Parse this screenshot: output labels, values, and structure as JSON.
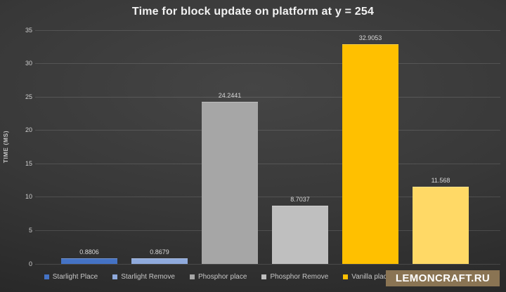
{
  "watermark": {
    "text": "LEMONCRAFT.RU",
    "background": "#8a7453"
  },
  "chart_data": {
    "type": "bar",
    "title": "Time for block update on platform at y = 254",
    "xlabel": "",
    "ylabel": "TIME (MS)",
    "ylim": [
      0,
      35
    ],
    "yticks": [
      0,
      5,
      10,
      15,
      20,
      25,
      30,
      35
    ],
    "grid": true,
    "legend_position": "bottom",
    "theme": "dark",
    "background_color": "#383838",
    "gridline_color": "rgba(255,255,255,0.13)",
    "bars": [
      {
        "label": "Starlight Place",
        "value": 0.8806,
        "value_label": "0.8806",
        "color": "#4472c4"
      },
      {
        "label": "Starlight Remove",
        "value": 0.8679,
        "value_label": "0.8679",
        "color": "#8faadc"
      },
      {
        "label": "Phosphor place",
        "value": 24.2441,
        "value_label": "24.2441",
        "color": "#a6a6a6"
      },
      {
        "label": "Phosphor Remove",
        "value": 8.7037,
        "value_label": "8.7037",
        "color": "#bfbfbf"
      },
      {
        "label": "Vanilla place",
        "value": 32.9053,
        "value_label": "32.9053",
        "color": "#ffc000"
      },
      {
        "label": "",
        "value": 11.568,
        "value_label": "11.568",
        "color": "#ffd966",
        "label_occluded_by_watermark": true
      }
    ]
  }
}
